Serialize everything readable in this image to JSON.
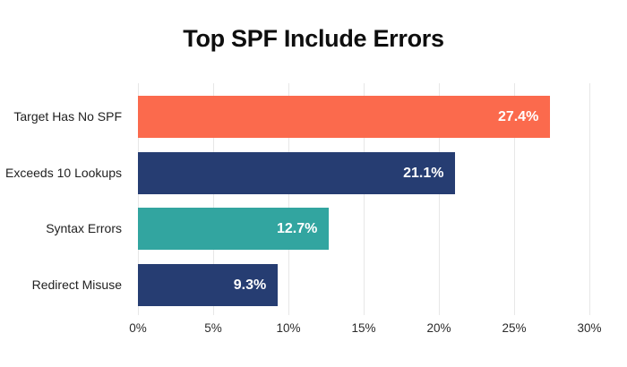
{
  "chart_data": {
    "type": "bar",
    "orientation": "horizontal",
    "title": "Top SPF Include Errors",
    "categories": [
      "Target Has No SPF",
      "Exceeds 10 Lookups",
      "Syntax Errors",
      "Redirect Misuse"
    ],
    "values": [
      27.4,
      21.1,
      12.7,
      9.3
    ],
    "value_labels": [
      "27.4%",
      "21.1%",
      "12.7%",
      "9.3%"
    ],
    "bar_colors": [
      "#fb6a4d",
      "#263d72",
      "#32a5a0",
      "#263d72"
    ],
    "xlabel": "",
    "ylabel": "",
    "xlim": [
      0,
      30
    ],
    "x_tick_values": [
      0,
      5,
      10,
      15,
      20,
      25,
      30
    ],
    "x_ticks": [
      "0%",
      "5%",
      "10%",
      "15%",
      "20%",
      "25%",
      "30%"
    ],
    "grid": "vertical",
    "legend": "none",
    "background_color": "#ffffff",
    "gridline_color": "#e7e7e7",
    "value_label_color": "#ffffff",
    "title_color": "#0e0e0e"
  }
}
